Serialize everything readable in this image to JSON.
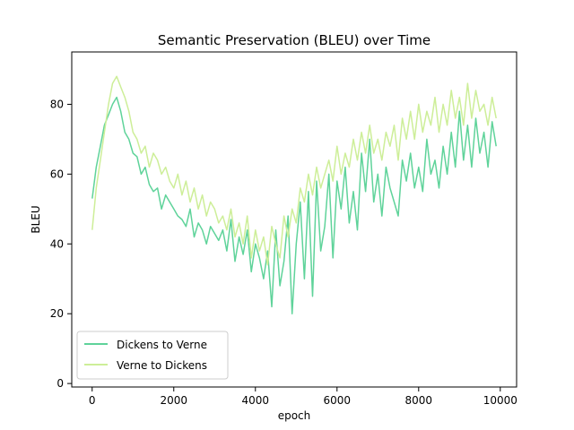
{
  "chart_data": {
    "type": "line",
    "title": "Semantic Preservation (BLEU) over Time",
    "xlabel": "epoch",
    "ylabel": "BLEU",
    "xlim": [
      -500,
      10400
    ],
    "ylim": [
      -1,
      95
    ],
    "xticks": [
      0,
      2000,
      4000,
      6000,
      8000,
      10000
    ],
    "yticks": [
      0,
      20,
      40,
      60,
      80
    ],
    "grid": false,
    "legend": {
      "position": "lower-left"
    },
    "series": [
      {
        "name": "Dickens to Verne",
        "color": "#5fd39a",
        "x": [
          0,
          100,
          200,
          300,
          400,
          500,
          600,
          700,
          800,
          900,
          1000,
          1100,
          1200,
          1300,
          1400,
          1500,
          1600,
          1700,
          1800,
          1900,
          2000,
          2100,
          2200,
          2300,
          2400,
          2500,
          2600,
          2700,
          2800,
          2900,
          3000,
          3100,
          3200,
          3300,
          3400,
          3500,
          3600,
          3700,
          3800,
          3900,
          4000,
          4100,
          4200,
          4300,
          4400,
          4500,
          4600,
          4700,
          4800,
          4900,
          5000,
          5100,
          5200,
          5300,
          5400,
          5500,
          5600,
          5700,
          5800,
          5900,
          6000,
          6100,
          6200,
          6300,
          6400,
          6500,
          6600,
          6700,
          6800,
          6900,
          7000,
          7100,
          7200,
          7300,
          7400,
          7500,
          7600,
          7700,
          7800,
          7900,
          8000,
          8100,
          8200,
          8300,
          8400,
          8500,
          8600,
          8700,
          8800,
          8900,
          9000,
          9100,
          9200,
          9300,
          9400,
          9500,
          9600,
          9700,
          9800,
          9900
        ],
        "y": [
          53,
          62,
          68,
          74,
          77,
          80,
          82,
          78,
          72,
          70,
          66,
          65,
          60,
          62,
          57,
          55,
          56,
          50,
          54,
          52,
          50,
          48,
          47,
          45,
          50,
          42,
          46,
          44,
          40,
          45,
          43,
          41,
          44,
          38,
          47,
          35,
          42,
          37,
          44,
          32,
          40,
          36,
          30,
          38,
          22,
          44,
          28,
          35,
          48,
          20,
          40,
          52,
          30,
          55,
          25,
          58,
          38,
          45,
          60,
          36,
          58,
          50,
          62,
          46,
          55,
          44,
          66,
          55,
          70,
          52,
          60,
          48,
          62,
          56,
          52,
          48,
          64,
          58,
          66,
          56,
          62,
          55,
          70,
          60,
          64,
          56,
          68,
          60,
          72,
          62,
          78,
          64,
          74,
          62,
          76,
          66,
          72,
          62,
          75,
          68
        ]
      },
      {
        "name": "Verne to Dickens",
        "color": "#cdee98",
        "x": [
          0,
          100,
          200,
          300,
          400,
          500,
          600,
          700,
          800,
          900,
          1000,
          1100,
          1200,
          1300,
          1400,
          1500,
          1600,
          1700,
          1800,
          1900,
          2000,
          2100,
          2200,
          2300,
          2400,
          2500,
          2600,
          2700,
          2800,
          2900,
          3000,
          3100,
          3200,
          3300,
          3400,
          3500,
          3600,
          3700,
          3800,
          3900,
          4000,
          4100,
          4200,
          4300,
          4400,
          4500,
          4600,
          4700,
          4800,
          4900,
          5000,
          5100,
          5200,
          5300,
          5400,
          5500,
          5600,
          5700,
          5800,
          5900,
          6000,
          6100,
          6200,
          6300,
          6400,
          6500,
          6600,
          6700,
          6800,
          6900,
          7000,
          7100,
          7200,
          7300,
          7400,
          7500,
          7600,
          7700,
          7800,
          7900,
          8000,
          8100,
          8200,
          8300,
          8400,
          8500,
          8600,
          8700,
          8800,
          8900,
          9000,
          9100,
          9200,
          9300,
          9400,
          9500,
          9600,
          9700,
          9800,
          9900
        ],
        "y": [
          44,
          56,
          64,
          72,
          80,
          86,
          88,
          85,
          82,
          78,
          72,
          70,
          66,
          68,
          62,
          66,
          64,
          60,
          62,
          58,
          56,
          60,
          54,
          58,
          52,
          56,
          50,
          54,
          48,
          52,
          50,
          46,
          48,
          44,
          50,
          42,
          46,
          40,
          48,
          36,
          44,
          38,
          42,
          34,
          45,
          40,
          36,
          48,
          42,
          50,
          46,
          56,
          52,
          60,
          54,
          62,
          56,
          60,
          64,
          58,
          68,
          60,
          66,
          62,
          70,
          64,
          72,
          66,
          74,
          66,
          70,
          64,
          72,
          68,
          74,
          64,
          76,
          70,
          78,
          70,
          80,
          72,
          78,
          74,
          82,
          72,
          80,
          74,
          84,
          76,
          82,
          74,
          86,
          76,
          84,
          78,
          80,
          74,
          82,
          76
        ]
      }
    ]
  }
}
